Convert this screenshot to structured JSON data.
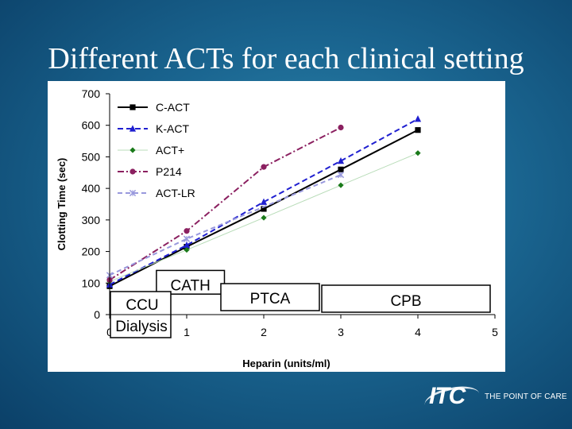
{
  "slide": {
    "title": "Different ACTs for each clinical setting"
  },
  "brand": {
    "mark": "ITC",
    "tagline": "THE POINT OF CARE",
    "accent_color": "#ffffff"
  },
  "chart_data": {
    "type": "line",
    "title": "",
    "xlabel": "Heparin (units/ml)",
    "ylabel": "Clotting Time (sec)",
    "xlim": [
      0,
      5
    ],
    "ylim": [
      0,
      700
    ],
    "xticks": [
      0,
      1,
      2,
      3,
      4,
      5
    ],
    "yticks": [
      0,
      100,
      200,
      300,
      400,
      500,
      600,
      700
    ],
    "grid": false,
    "legend_position": "top-left",
    "series": [
      {
        "name": "C-ACT",
        "color": "#000000",
        "marker": "square",
        "dash": "",
        "x": [
          0,
          1,
          2,
          3,
          4
        ],
        "values": [
          90,
          215,
          335,
          460,
          585
        ]
      },
      {
        "name": "K-ACT",
        "color": "#1f1fd0",
        "marker": "triangle",
        "dash": "7,4",
        "x": [
          0,
          1,
          2,
          3,
          4
        ],
        "values": [
          95,
          220,
          357,
          487,
          620
        ]
      },
      {
        "name": "ACT+",
        "color": "#1a7a1a",
        "marker": "diamond",
        "dash": "",
        "x": [
          0,
          1,
          2,
          3,
          4
        ],
        "values": [
          105,
          205,
          307,
          410,
          512
        ]
      },
      {
        "name": "P214",
        "color": "#8b2060",
        "marker": "circle",
        "dash": "8,3,2,3",
        "x": [
          0,
          1,
          2,
          3
        ],
        "values": [
          110,
          265,
          468,
          593
        ]
      },
      {
        "name": "ACT-LR",
        "color": "#9999dd",
        "marker": "x",
        "dash": "6,4",
        "x": [
          0,
          1,
          3
        ],
        "values": [
          125,
          240,
          443
        ]
      }
    ],
    "annotations": [
      {
        "label": "CATH",
        "x0": 0.7,
        "x1": 1.5,
        "y0": 70,
        "y1": 150
      },
      {
        "label": "CCU",
        "x0": 0,
        "x1": 0.8,
        "y0": -70,
        "y1": 70
      },
      {
        "label": "Dialysis",
        "x0": 0,
        "x1": 0.8,
        "y0": -70,
        "y1": 70
      },
      {
        "label": "PTCA",
        "x0": 1.45,
        "x1": 2.75,
        "y0": 15,
        "y1": 95
      },
      {
        "label": "CPB",
        "x0": 2.8,
        "x1": 5.0,
        "y0": 10,
        "y1": 90
      }
    ]
  }
}
